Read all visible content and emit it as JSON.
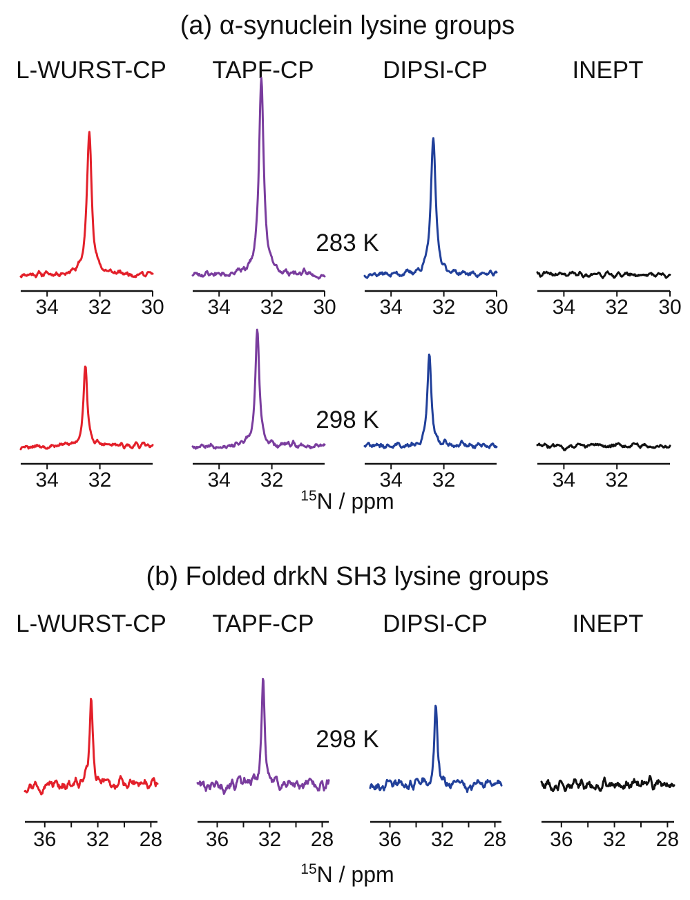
{
  "chart_data": [
    {
      "type": "line",
      "title": "(a) α-synuclein lysine groups",
      "methods": [
        "L-WURST-CP",
        "TAPF-CP",
        "DIPSI-CP",
        "INEPT"
      ],
      "xlabel": {
        "sup": "15",
        "main": "N / ppm"
      },
      "x_direction": "reversed",
      "rows": [
        {
          "temperature_label": "283 K",
          "xlim": [
            35,
            30
          ],
          "xticks": [
            34,
            32,
            30
          ],
          "xtick_labels": [
            "34",
            "32",
            "30"
          ],
          "series": [
            {
              "name": "L-WURST-CP",
              "color": "#e3202a",
              "peak_ppm": 32.4,
              "peak_height": 1.0,
              "peak_width": 0.11,
              "noise": 0.045,
              "seed": 11
            },
            {
              "name": "TAPF-CP",
              "color": "#7a3d9e",
              "peak_ppm": 32.4,
              "peak_height": 1.37,
              "peak_width": 0.11,
              "noise": 0.05,
              "seed": 23
            },
            {
              "name": "DIPSI-CP",
              "color": "#21409a",
              "peak_ppm": 32.4,
              "peak_height": 0.95,
              "peak_width": 0.11,
              "noise": 0.045,
              "seed": 37
            },
            {
              "name": "INEPT",
              "color": "#111111",
              "peak_ppm": 32.4,
              "peak_height": 0.0,
              "peak_width": 0.11,
              "noise": 0.04,
              "seed": 41
            }
          ]
        },
        {
          "temperature_label": "298 K",
          "xlim": [
            35,
            30
          ],
          "xticks": [
            34,
            32
          ],
          "xtick_labels": [
            "34",
            "32"
          ],
          "series": [
            {
              "name": "L-WURST-CP",
              "color": "#e3202a",
              "peak_ppm": 32.55,
              "peak_height": 0.56,
              "peak_width": 0.09,
              "noise": 0.04,
              "seed": 53
            },
            {
              "name": "TAPF-CP",
              "color": "#7a3d9e",
              "peak_ppm": 32.55,
              "peak_height": 0.82,
              "peak_width": 0.09,
              "noise": 0.045,
              "seed": 67
            },
            {
              "name": "DIPSI-CP",
              "color": "#21409a",
              "peak_ppm": 32.55,
              "peak_height": 0.64,
              "peak_width": 0.09,
              "noise": 0.05,
              "seed": 71
            },
            {
              "name": "INEPT",
              "color": "#111111",
              "peak_ppm": 32.55,
              "peak_height": 0.0,
              "peak_width": 0.09,
              "noise": 0.04,
              "seed": 83
            }
          ]
        }
      ]
    },
    {
      "type": "line",
      "title": "(b) Folded drkN SH3 lysine groups",
      "methods": [
        "L-WURST-CP",
        "TAPF-CP",
        "DIPSI-CP",
        "INEPT"
      ],
      "xlabel": {
        "sup": "15",
        "main": "N / ppm"
      },
      "x_direction": "reversed",
      "rows": [
        {
          "temperature_label": "298 K",
          "xlim": [
            37.5,
            27.5
          ],
          "xticks": [
            36,
            32,
            28
          ],
          "xtick_labels": [
            "36",
            "32",
            "28"
          ],
          "minor_xticks": [
            34,
            30
          ],
          "series": [
            {
              "name": "L-WURST-CP",
              "color": "#e3202a",
              "peak_ppm": 32.5,
              "peak_height": 0.9,
              "peak_width": 0.14,
              "noise": 0.14,
              "seed": 97
            },
            {
              "name": "TAPF-CP",
              "color": "#7a3d9e",
              "peak_ppm": 32.5,
              "peak_height": 1.15,
              "peak_width": 0.14,
              "noise": 0.15,
              "seed": 101
            },
            {
              "name": "DIPSI-CP",
              "color": "#21409a",
              "peak_ppm": 32.5,
              "peak_height": 0.85,
              "peak_width": 0.14,
              "noise": 0.13,
              "seed": 113
            },
            {
              "name": "INEPT",
              "color": "#111111",
              "peak_ppm": 32.5,
              "peak_height": 0.0,
              "peak_width": 0.14,
              "noise": 0.15,
              "seed": 127
            }
          ]
        }
      ]
    }
  ]
}
